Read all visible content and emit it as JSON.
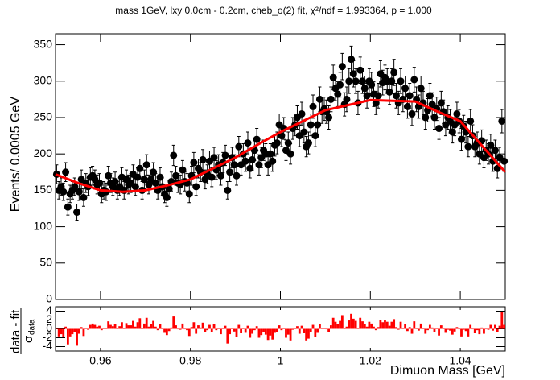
{
  "chart_data": [
    {
      "type": "scatter",
      "title": "mass 1GeV, lxy 0.0cm - 0.2cm, cheb_o(2) fit,      χ²/ndf = 1.993364, p = 1.000",
      "ylabel": "Events/ 0.0005 GeV",
      "x": [
        0.95025,
        0.95075,
        0.95125,
        0.95175,
        0.95225,
        0.95275,
        0.95325,
        0.95375,
        0.95425,
        0.95475,
        0.95525,
        0.95575,
        0.95625,
        0.95675,
        0.95725,
        0.95775,
        0.95825,
        0.95875,
        0.95925,
        0.95975,
        0.96025,
        0.96075,
        0.96125,
        0.96175,
        0.96225,
        0.96275,
        0.96325,
        0.96375,
        0.96425,
        0.96475,
        0.96525,
        0.96575,
        0.96625,
        0.96675,
        0.96725,
        0.96775,
        0.96825,
        0.96875,
        0.96925,
        0.96975,
        0.97025,
        0.97075,
        0.97125,
        0.97175,
        0.97225,
        0.97275,
        0.97325,
        0.97375,
        0.97425,
        0.97475,
        0.97525,
        0.97575,
        0.97625,
        0.97675,
        0.97725,
        0.97775,
        0.97825,
        0.97875,
        0.97925,
        0.97975,
        0.98025,
        0.98075,
        0.98125,
        0.98175,
        0.98225,
        0.98275,
        0.98325,
        0.98375,
        0.98425,
        0.98475,
        0.98525,
        0.98575,
        0.98625,
        0.98675,
        0.98725,
        0.98775,
        0.98825,
        0.98875,
        0.98925,
        0.98975,
        0.99025,
        0.99075,
        0.99125,
        0.99175,
        0.99225,
        0.99275,
        0.99325,
        0.99375,
        0.99425,
        0.99475,
        0.99525,
        0.99575,
        0.99625,
        0.99675,
        0.99725,
        0.99775,
        0.99825,
        0.99875,
        0.99925,
        0.99975,
        1.00025,
        1.00075,
        1.00125,
        1.00175,
        1.00225,
        1.00275,
        1.00325,
        1.00375,
        1.00425,
        1.00475,
        1.00525,
        1.00575,
        1.00625,
        1.00675,
        1.00725,
        1.00775,
        1.00825,
        1.00875,
        1.00925,
        1.00975,
        1.01025,
        1.01075,
        1.01125,
        1.01175,
        1.01225,
        1.01275,
        1.01325,
        1.01375,
        1.01425,
        1.01475,
        1.01525,
        1.01575,
        1.01625,
        1.01675,
        1.01725,
        1.01775,
        1.01825,
        1.01875,
        1.01925,
        1.01975,
        1.02025,
        1.02075,
        1.02125,
        1.02175,
        1.02225,
        1.02275,
        1.02325,
        1.02375,
        1.02425,
        1.02475,
        1.02525,
        1.02575,
        1.02625,
        1.02675,
        1.02725,
        1.02775,
        1.02825,
        1.02875,
        1.02925,
        1.02975,
        1.03025,
        1.03075,
        1.03125,
        1.03175,
        1.03225,
        1.03275,
        1.03325,
        1.03375,
        1.03425,
        1.03475,
        1.03525,
        1.03575,
        1.03625,
        1.03675,
        1.03725,
        1.03775,
        1.03825,
        1.03875,
        1.03925,
        1.03975,
        1.04025,
        1.04075,
        1.04125,
        1.04175,
        1.04225,
        1.04275,
        1.04325,
        1.04375,
        1.04425,
        1.04475,
        1.04525,
        1.04575,
        1.04625,
        1.04675,
        1.04725,
        1.04775,
        1.04825,
        1.04875,
        1.04925,
        1.04975
      ],
      "values": [
        172,
        150,
        155,
        148,
        175,
        127,
        145,
        150,
        155,
        120,
        148,
        165,
        140,
        160,
        155,
        168,
        170,
        165,
        158,
        160,
        145,
        150,
        148,
        170,
        160,
        155,
        162,
        150,
        155,
        168,
        150,
        165,
        158,
        160,
        172,
        155,
        168,
        180,
        150,
        165,
        185,
        158,
        165,
        175,
        160,
        150,
        168,
        155,
        145,
        140,
        152,
        162,
        198,
        170,
        160,
        158,
        178,
        162,
        160,
        145,
        170,
        188,
        155,
        180,
        175,
        192,
        165,
        172,
        190,
        168,
        195,
        178,
        185,
        170,
        188,
        198,
        150,
        175,
        195,
        185,
        170,
        210,
        185,
        200,
        190,
        215,
        180,
        192,
        205,
        220,
        185,
        195,
        205,
        200,
        185,
        200,
        190,
        212,
        215,
        240,
        225,
        235,
        205,
        215,
        200,
        235,
        240,
        250,
        225,
        255,
        230,
        210,
        215,
        240,
        265,
        225,
        240,
        275,
        258,
        262,
        258,
        250,
        275,
        305,
        290,
        282,
        295,
        320,
        268,
        275,
        300,
        330,
        310,
        300,
        270,
        315,
        300,
        290,
        280,
        300,
        295,
        282,
        270,
        280,
        310,
        298,
        305,
        300,
        285,
        300,
        312,
        280,
        270,
        300,
        275,
        290,
        265,
        280,
        255,
        302,
        275,
        265,
        290,
        270,
        250,
        260,
        280,
        268,
        250,
        262,
        235,
        270,
        258,
        240,
        250,
        245,
        230,
        240,
        255,
        245,
        220,
        238,
        230,
        210,
        245,
        225,
        210,
        215,
        200,
        218,
        195,
        205,
        200,
        212,
        190,
        205,
        180,
        195,
        245,
        190
      ],
      "errors": [
        13,
        12,
        12,
        12,
        13,
        11,
        12,
        12,
        12,
        11,
        12,
        13,
        12,
        13,
        12,
        13,
        13,
        13,
        13,
        13,
        12,
        12,
        12,
        13,
        13,
        12,
        13,
        12,
        12,
        13,
        12,
        13,
        13,
        13,
        13,
        12,
        13,
        13,
        12,
        13,
        14,
        13,
        13,
        13,
        13,
        12,
        13,
        12,
        12,
        12,
        12,
        13,
        14,
        13,
        13,
        13,
        13,
        13,
        13,
        12,
        13,
        14,
        12,
        13,
        13,
        14,
        13,
        13,
        14,
        13,
        14,
        13,
        14,
        13,
        14,
        14,
        12,
        13,
        14,
        14,
        13,
        14,
        14,
        14,
        14,
        15,
        13,
        14,
        14,
        15,
        14,
        14,
        14,
        14,
        14,
        14,
        14,
        15,
        15,
        15,
        15,
        15,
        14,
        15,
        14,
        15,
        15,
        16,
        15,
        16,
        15,
        14,
        15,
        15,
        16,
        15,
        15,
        17,
        16,
        16,
        16,
        16,
        17,
        17,
        17,
        17,
        17,
        18,
        16,
        17,
        17,
        18,
        18,
        17,
        16,
        18,
        17,
        17,
        17,
        17,
        17,
        17,
        16,
        17,
        18,
        17,
        17,
        17,
        17,
        17,
        18,
        17,
        16,
        17,
        17,
        17,
        16,
        17,
        16,
        17,
        17,
        16,
        17,
        16,
        16,
        16,
        17,
        16,
        16,
        16,
        15,
        16,
        16,
        15,
        16,
        16,
        15,
        15,
        16,
        16,
        15,
        15,
        15,
        14,
        16,
        15,
        14,
        15,
        14,
        15,
        14,
        14,
        14,
        15,
        14,
        14,
        13,
        14,
        16,
        14
      ],
      "color": "#000000",
      "fit": {
        "x": [
          0.95,
          0.955,
          0.96,
          0.965,
          0.97,
          0.975,
          0.98,
          0.985,
          0.99,
          0.995,
          1.0,
          1.005,
          1.01,
          1.015,
          1.02,
          1.025,
          1.03,
          1.035,
          1.04,
          1.045,
          1.05
        ],
        "values": [
          172,
          160,
          150,
          148,
          150,
          157,
          165,
          180,
          195,
          213,
          230,
          245,
          260,
          267,
          274,
          273,
          272,
          258,
          245,
          210,
          175
        ],
        "color": "#ff0000"
      },
      "xlim": [
        0.95,
        1.05
      ],
      "ylim": [
        0,
        365
      ],
      "xticks": [
        0.96,
        0.98,
        1,
        1.02,
        1.04
      ],
      "yticks": [
        0,
        50,
        100,
        150,
        200,
        250,
        300,
        350
      ]
    },
    {
      "type": "bar",
      "ylabel": {
        "numerator": "data - fit",
        "denominator": "σ",
        "subscript": "data"
      },
      "xlabel": "Dimuon Mass [GeV]",
      "values": [
        0,
        -1.7,
        -1.2,
        -1.8,
        0.5,
        -3.5,
        -1.7,
        -1.2,
        -0.7,
        -3.8,
        -1.1,
        0.4,
        -1.6,
        0.2,
        -0.2,
        0.9,
        1.2,
        0.9,
        0.5,
        0.7,
        -0.3,
        0.2,
        0,
        1.7,
        0.9,
        0.6,
        1.1,
        0.2,
        0.6,
        1.5,
        0.2,
        1.3,
        0.8,
        0.8,
        1.8,
        0.5,
        1.5,
        2.4,
        0,
        1.2,
        2.5,
        0.5,
        1,
        1.8,
        0.5,
        -0.3,
        1.1,
        0,
        -0.9,
        -1.4,
        -0.5,
        0.3,
        2.8,
        0.8,
        -0.1,
        -0.2,
        1.2,
        -0.1,
        -0.3,
        -1.6,
        0.4,
        1.5,
        -1.1,
        0.8,
        0.3,
        1.4,
        -0.7,
        -0.3,
        0.9,
        -0.8,
        1.1,
        -0.3,
        0.1,
        -1.2,
        0.1,
        0.7,
        -3.3,
        -1.2,
        0.2,
        -0.6,
        -1.9,
        0.9,
        -1,
        0,
        -0.9,
        0.7,
        -2,
        -1.1,
        -0.3,
        0.6,
        -2,
        -1.4,
        -0.8,
        -1.3,
        -2.5,
        -1.5,
        -2.4,
        -0.9,
        -0.8,
        0.8,
        -0.3,
        0.2,
        -2,
        -1.3,
        -2.6,
        -0.2,
        0.1,
        0.6,
        -1.1,
        0.7,
        -1,
        -2.6,
        -2.2,
        -0.7,
        0.9,
        -1.9,
        -0.9,
        1.1,
        0.1,
        0.2,
        -0.1,
        -0.7,
        0.8,
        2.5,
        1.6,
        1.1,
        1.8,
        3.1,
        0.1,
        0.5,
        1.9,
        3.4,
        2.3,
        1.8,
        0.1,
        2.5,
        1.7,
        1.1,
        0.5,
        1.6,
        1.2,
        0.5,
        -0.3,
        0.4,
        2,
        1.5,
        1.9,
        1.6,
        0.7,
        1.6,
        2.2,
        0.4,
        -0.2,
        1.6,
        0.1,
        1,
        -0.5,
        0.4,
        -1.1,
        1.7,
        0.2,
        -0.4,
        1.2,
        0.1,
        -1.1,
        -0.3,
        0.9,
        0.3,
        -0.7,
        0.1,
        -1.5,
        0.8,
        0.1,
        -0.9,
        -0.2,
        -0.4,
        -1.3,
        -0.6,
        0.4,
        -0.1,
        -1.7,
        -0.2,
        -0.5,
        -1.7,
        0.9,
        -0.1,
        -1,
        -0.3,
        -1.2,
        0.3,
        -1.1,
        -0.1,
        -0.2,
        0.9,
        -0.4,
        0.9,
        -0.7,
        0.7,
        3.9,
        0.9
      ],
      "color": "#ff0000",
      "xlim": [
        0.95,
        1.05
      ],
      "ylim": [
        -5,
        5
      ],
      "xticks": [
        0.96,
        0.98,
        1,
        1.02,
        1.04
      ],
      "yticks": [
        -4,
        -2,
        0,
        2,
        4
      ]
    }
  ]
}
